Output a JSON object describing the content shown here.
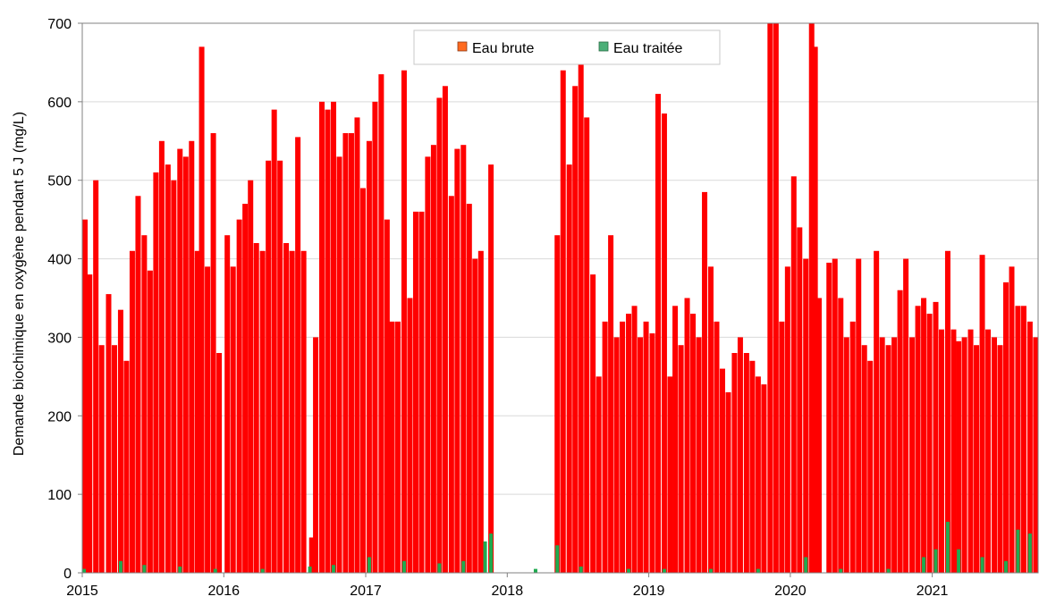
{
  "chart_data": {
    "type": "bar",
    "title": "",
    "xlabel": "",
    "ylabel": "Demande biochimique en oxygène pendant 5 J (mg/L)",
    "ylim": [
      0,
      700
    ],
    "yticks": [
      "0",
      "100",
      "200",
      "300",
      "400",
      "500",
      "600",
      "700"
    ],
    "xlim": [
      "2015-01-01",
      "2021-10-01"
    ],
    "xticks": [
      "2015",
      "2016",
      "2017",
      "2018",
      "2019",
      "2020",
      "2021"
    ],
    "grid": "horizontal",
    "legend_position": "top-center",
    "series": [
      {
        "name": "Eau brute",
        "color": "#ff0000",
        "legend_color": "#ff6a1f",
        "points": [
          [
            "2015-01-01",
            450
          ],
          [
            "2015-01-20",
            380
          ],
          [
            "2015-02-05",
            500
          ],
          [
            "2015-02-20",
            290
          ],
          [
            "2015-03-10",
            355
          ],
          [
            "2015-03-25",
            290
          ],
          [
            "2015-04-10",
            335
          ],
          [
            "2015-04-25",
            270
          ],
          [
            "2015-05-10",
            410
          ],
          [
            "2015-05-25",
            480
          ],
          [
            "2015-06-10",
            430
          ],
          [
            "2015-06-25",
            385
          ],
          [
            "2015-07-10",
            510
          ],
          [
            "2015-07-25",
            550
          ],
          [
            "2015-08-10",
            520
          ],
          [
            "2015-08-25",
            500
          ],
          [
            "2015-09-10",
            540
          ],
          [
            "2015-09-25",
            530
          ],
          [
            "2015-10-10",
            550
          ],
          [
            "2015-10-25",
            410
          ],
          [
            "2015-11-05",
            670
          ],
          [
            "2015-11-20",
            390
          ],
          [
            "2015-12-05",
            560
          ],
          [
            "2015-12-20",
            280
          ],
          [
            "2016-01-10",
            430
          ],
          [
            "2016-01-25",
            390
          ],
          [
            "2016-02-10",
            450
          ],
          [
            "2016-02-25",
            470
          ],
          [
            "2016-03-10",
            500
          ],
          [
            "2016-03-25",
            420
          ],
          [
            "2016-04-10",
            410
          ],
          [
            "2016-04-25",
            525
          ],
          [
            "2016-05-10",
            590
          ],
          [
            "2016-05-25",
            525
          ],
          [
            "2016-06-10",
            420
          ],
          [
            "2016-06-25",
            410
          ],
          [
            "2016-07-10",
            555
          ],
          [
            "2016-07-25",
            410
          ],
          [
            "2016-08-15",
            45
          ],
          [
            "2016-08-25",
            300
          ],
          [
            "2016-09-10",
            600
          ],
          [
            "2016-09-25",
            590
          ],
          [
            "2016-10-10",
            600
          ],
          [
            "2016-10-25",
            530
          ],
          [
            "2016-11-10",
            560
          ],
          [
            "2016-11-25",
            560
          ],
          [
            "2016-12-10",
            580
          ],
          [
            "2016-12-25",
            490
          ],
          [
            "2017-01-10",
            550
          ],
          [
            "2017-01-25",
            600
          ],
          [
            "2017-02-10",
            635
          ],
          [
            "2017-02-25",
            450
          ],
          [
            "2017-03-10",
            320
          ],
          [
            "2017-03-25",
            320
          ],
          [
            "2017-04-10",
            640
          ],
          [
            "2017-04-25",
            350
          ],
          [
            "2017-05-10",
            460
          ],
          [
            "2017-05-25",
            460
          ],
          [
            "2017-06-10",
            530
          ],
          [
            "2017-06-25",
            545
          ],
          [
            "2017-07-10",
            605
          ],
          [
            "2017-07-25",
            620
          ],
          [
            "2017-08-10",
            480
          ],
          [
            "2017-08-25",
            540
          ],
          [
            "2017-09-10",
            545
          ],
          [
            "2017-09-25",
            470
          ],
          [
            "2017-10-10",
            400
          ],
          [
            "2017-10-25",
            410
          ],
          [
            "2017-11-20",
            520
          ],
          [
            "2018-05-10",
            430
          ],
          [
            "2018-05-25",
            640
          ],
          [
            "2018-06-10",
            520
          ],
          [
            "2018-06-25",
            620
          ],
          [
            "2018-07-10",
            680
          ],
          [
            "2018-07-25",
            580
          ],
          [
            "2018-08-10",
            380
          ],
          [
            "2018-08-25",
            250
          ],
          [
            "2018-09-10",
            320
          ],
          [
            "2018-09-25",
            430
          ],
          [
            "2018-10-10",
            300
          ],
          [
            "2018-10-25",
            320
          ],
          [
            "2018-11-10",
            330
          ],
          [
            "2018-11-25",
            340
          ],
          [
            "2018-12-10",
            300
          ],
          [
            "2018-12-25",
            320
          ],
          [
            "2019-01-10",
            305
          ],
          [
            "2019-01-25",
            610
          ],
          [
            "2019-02-10",
            585
          ],
          [
            "2019-02-25",
            250
          ],
          [
            "2019-03-10",
            340
          ],
          [
            "2019-03-25",
            290
          ],
          [
            "2019-04-10",
            350
          ],
          [
            "2019-04-25",
            330
          ],
          [
            "2019-05-10",
            300
          ],
          [
            "2019-05-25",
            485
          ],
          [
            "2019-06-10",
            390
          ],
          [
            "2019-06-25",
            320
          ],
          [
            "2019-07-10",
            260
          ],
          [
            "2019-07-25",
            230
          ],
          [
            "2019-08-10",
            280
          ],
          [
            "2019-08-25",
            300
          ],
          [
            "2019-09-10",
            280
          ],
          [
            "2019-09-25",
            270
          ],
          [
            "2019-10-10",
            250
          ],
          [
            "2019-10-25",
            240
          ],
          [
            "2019-11-10",
            700
          ],
          [
            "2019-11-25",
            700
          ],
          [
            "2019-12-10",
            320
          ],
          [
            "2019-12-25",
            390
          ],
          [
            "2020-01-10",
            505
          ],
          [
            "2020-01-25",
            440
          ],
          [
            "2020-02-10",
            400
          ],
          [
            "2020-02-25",
            700
          ],
          [
            "2020-03-05",
            670
          ],
          [
            "2020-03-15",
            350
          ],
          [
            "2020-04-10",
            395
          ],
          [
            "2020-04-25",
            400
          ],
          [
            "2020-05-10",
            350
          ],
          [
            "2020-05-25",
            300
          ],
          [
            "2020-06-10",
            320
          ],
          [
            "2020-06-25",
            400
          ],
          [
            "2020-07-10",
            290
          ],
          [
            "2020-07-25",
            270
          ],
          [
            "2020-08-10",
            410
          ],
          [
            "2020-08-25",
            300
          ],
          [
            "2020-09-10",
            290
          ],
          [
            "2020-09-25",
            300
          ],
          [
            "2020-10-10",
            360
          ],
          [
            "2020-10-25",
            400
          ],
          [
            "2020-11-10",
            300
          ],
          [
            "2020-11-25",
            340
          ],
          [
            "2020-12-10",
            350
          ],
          [
            "2020-12-25",
            330
          ],
          [
            "2021-01-10",
            345
          ],
          [
            "2021-01-25",
            310
          ],
          [
            "2021-02-10",
            410
          ],
          [
            "2021-02-25",
            310
          ],
          [
            "2021-03-10",
            295
          ],
          [
            "2021-03-25",
            300
          ],
          [
            "2021-04-10",
            310
          ],
          [
            "2021-04-25",
            290
          ],
          [
            "2021-05-10",
            405
          ],
          [
            "2021-05-25",
            310
          ],
          [
            "2021-06-10",
            300
          ],
          [
            "2021-06-25",
            290
          ],
          [
            "2021-07-10",
            370
          ],
          [
            "2021-07-25",
            390
          ],
          [
            "2021-08-10",
            340
          ],
          [
            "2021-08-25",
            340
          ],
          [
            "2021-09-10",
            320
          ],
          [
            "2021-09-25",
            300
          ]
        ]
      },
      {
        "name": "Eau traitée",
        "color": "#1faa50",
        "legend_color": "#4caf78",
        "points": [
          [
            "2015-01-01",
            5
          ],
          [
            "2015-04-10",
            15
          ],
          [
            "2015-06-10",
            10
          ],
          [
            "2015-09-10",
            8
          ],
          [
            "2015-12-10",
            5
          ],
          [
            "2016-04-10",
            5
          ],
          [
            "2016-08-10",
            8
          ],
          [
            "2016-10-10",
            10
          ],
          [
            "2017-01-10",
            20
          ],
          [
            "2017-04-10",
            15
          ],
          [
            "2017-07-10",
            12
          ],
          [
            "2017-09-10",
            15
          ],
          [
            "2017-11-05",
            40
          ],
          [
            "2017-11-20",
            50
          ],
          [
            "2018-03-15",
            5
          ],
          [
            "2018-05-10",
            35
          ],
          [
            "2018-07-10",
            8
          ],
          [
            "2018-11-10",
            5
          ],
          [
            "2019-02-10",
            5
          ],
          [
            "2019-06-10",
            5
          ],
          [
            "2019-10-10",
            5
          ],
          [
            "2020-02-10",
            20
          ],
          [
            "2020-05-10",
            5
          ],
          [
            "2020-09-10",
            5
          ],
          [
            "2020-12-10",
            20
          ],
          [
            "2021-01-10",
            30
          ],
          [
            "2021-02-10",
            65
          ],
          [
            "2021-03-10",
            30
          ],
          [
            "2021-05-10",
            20
          ],
          [
            "2021-07-10",
            15
          ],
          [
            "2021-08-10",
            55
          ],
          [
            "2021-09-10",
            50
          ]
        ]
      }
    ]
  }
}
